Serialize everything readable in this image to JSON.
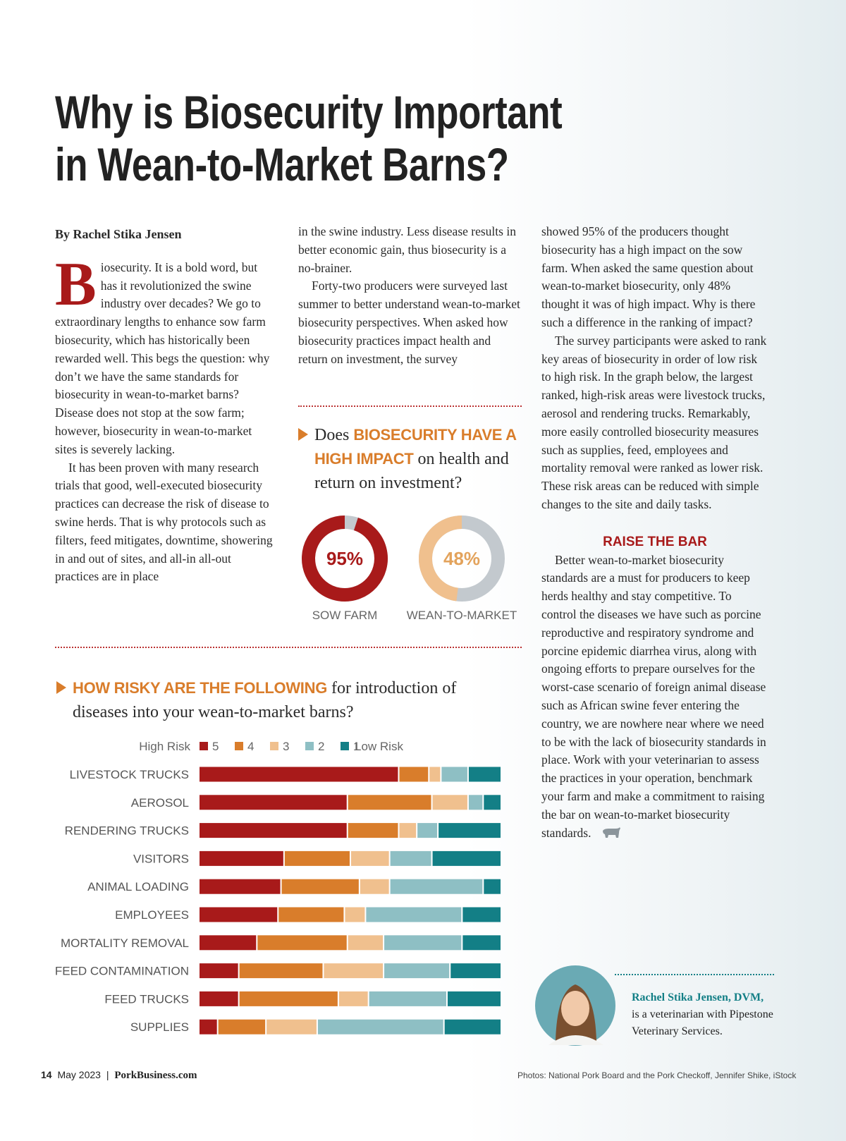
{
  "title": [
    "Why is Biosecurity Important",
    "in Wean-to-Market Barns?"
  ],
  "byline": "By Rachel Stika Jensen",
  "article": {
    "column1": [
      {
        "drop_cap": "B",
        "text": "iosecurity. It is a bold word, but has it revolutionized the swine industry over decades? We go to extraordinary lengths to enhance sow farm biosecurity, which has historically been rewarded well. This begs the question: why don’t we have the same standards for biosecurity in wean-to-market barns? Disease does not stop at the sow farm; however, biosecurity in wean-to-market sites is severely lacking."
      },
      "It has been proven with many research trials that good, well-executed biosecurity practices can decrease the risk of disease to swine herds. That is why protocols such as filters, feed mitigates, downtime, showering in and out of sites, and all-in all-out practices are in place"
    ],
    "column2": [
      "in the swine industry. Less disease results in better economic gain, thus biosecurity is a no-brainer.",
      "Forty-two producers were surveyed last summer to better understand wean-to-market biosecurity perspectives. When asked how biosecurity practices impact health and return on investment, the survey"
    ],
    "column3": [
      "showed 95% of the producers thought biosecurity has a high impact on the sow farm. When asked the same question about wean-to-market biosecurity, only 48% thought it was of high impact. Why is there such a difference in the ranking of impact?",
      "The survey participants were asked to rank key areas of biosecurity in order of low risk to high risk. In the graph below, the largest ranked, high-risk areas were livestock trucks, aerosol and rendering trucks. Remarkably, more easily controlled biosecurity measures such as supplies, feed, employees and mortality removal were ranked as lower risk. These risk areas can be reduced with simple changes to the site and daily tasks."
    ],
    "section_heading": "RAISE THE BAR",
    "section_text": "Better wean-to-market biosecurity standards are a must for producers to keep herds healthy and stay competitive. To control the diseases we have such as porcine reproductive and respiratory syndrome and porcine epidemic diarrhea virus, along with ongoing efforts to prepare ourselves for the worst-case scenario of foreign animal disease such as African swine fever entering the country, we are nowhere near where we need to be with the lack of biosecurity standards in place. Work with your veterinarian to assess the practices in your operation, benchmark your farm and make a commitment to raising the bar on wean-to-market biosecurity standards."
  },
  "chart_data": [
    {
      "type": "donut",
      "title": [
        "Does",
        "BIOSECURITY HAVE A HIGH IMPACT",
        "on health and return on investment?"
      ],
      "categories": [
        "SOW FARM",
        "WEAN-TO-MARKET"
      ],
      "values": [
        95,
        48
      ],
      "value_labels": [
        "95%",
        "48%"
      ],
      "colors": [
        "#a81a1a",
        "#f0c08e"
      ],
      "label_colors": [
        "#a81a1a",
        "#e3a35c"
      ],
      "rest_color": "#c3c9ce",
      "ylim": [
        0,
        100
      ]
    },
    {
      "type": "stacked-bar-horizontal",
      "title": [
        "HOW RISKY ARE THE FOLLOWING",
        "for introduction of diseases into your wean-to-market barns?"
      ],
      "legend_start": "High Risk",
      "legend_end": "Low Risk",
      "categories": [
        "LIVESTOCK TRUCKS",
        "AEROSOL",
        "RENDERING TRUCKS",
        "VISITORS",
        "ANIMAL LOADING",
        "EMPLOYEES",
        "MORTALITY REMOVAL",
        "FEED CONTAMINATION",
        "FEED TRUCKS",
        "SUPPLIES"
      ],
      "series": [
        {
          "name": "5",
          "color": "#a81a1a",
          "values": [
            66,
            49,
            49,
            28,
            27,
            26,
            19,
            13,
            13,
            6
          ]
        },
        {
          "name": "4",
          "color": "#d97d2b",
          "values": [
            10,
            28,
            17,
            22,
            26,
            22,
            30,
            28,
            33,
            16
          ]
        },
        {
          "name": "3",
          "color": "#f0c08e",
          "values": [
            4,
            12,
            6,
            13,
            10,
            7,
            12,
            20,
            10,
            17
          ]
        },
        {
          "name": "2",
          "color": "#8ebfc4",
          "values": [
            9,
            5,
            7,
            14,
            31,
            32,
            26,
            22,
            26,
            42
          ]
        },
        {
          "name": "1",
          "color": "#137f86",
          "values": [
            11,
            6,
            21,
            23,
            6,
            13,
            13,
            17,
            18,
            19
          ]
        }
      ]
    }
  ],
  "author": {
    "name": "Rachel Stika Jensen, DVM,",
    "bio": "is a veterinarian with Pipestone Veterinary Services."
  },
  "footer": {
    "page": "14",
    "issue": "May 2023",
    "separator": "|",
    "site": "PorkBusiness.com",
    "credits": "Photos: National Pork Board and the Pork Checkoff, Jennifer Shike, iStock"
  }
}
